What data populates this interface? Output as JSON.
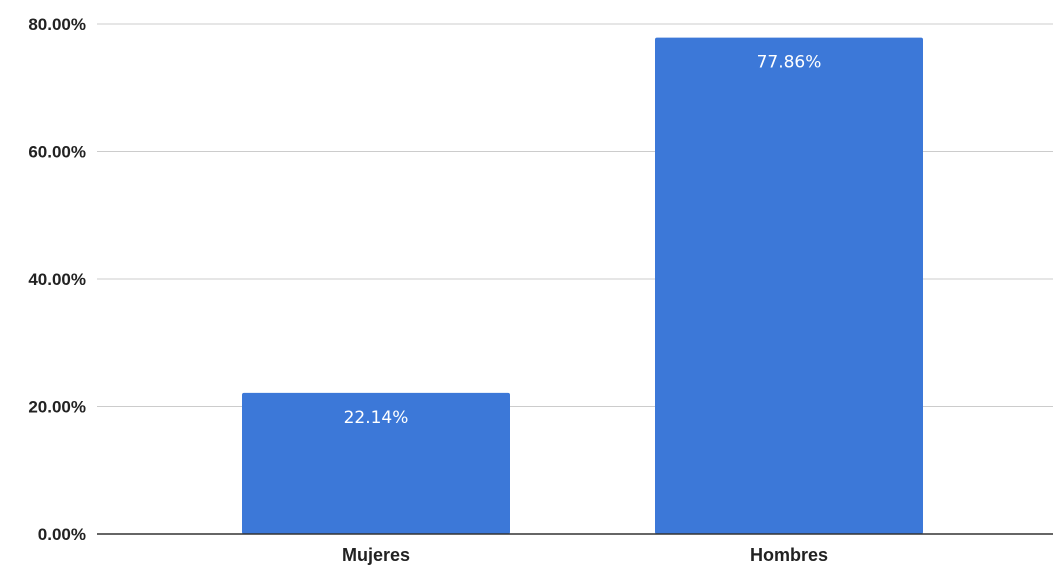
{
  "chart_data": {
    "type": "bar",
    "title": "",
    "xlabel": "",
    "ylabel": "",
    "categories": [
      "Mujeres",
      "Hombres"
    ],
    "values": [
      22.14,
      77.86
    ],
    "data_labels": [
      "22.14%",
      "77.86%"
    ],
    "ylim": [
      0,
      80
    ],
    "yticks": [
      0,
      20,
      40,
      60,
      80
    ],
    "ytick_labels": [
      "0.00%",
      "20.00%",
      "40.00%",
      "60.00%",
      "80.00%"
    ],
    "grid": true,
    "legend": "none",
    "bar_color": "#3c78d8",
    "data_label_color": "#ffffff"
  }
}
